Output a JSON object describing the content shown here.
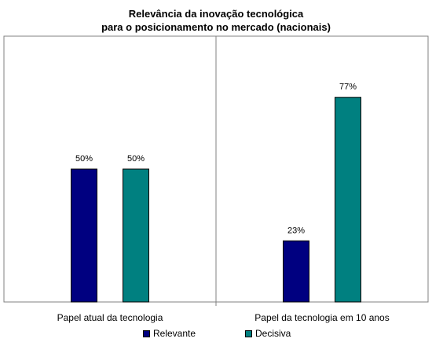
{
  "chart_data": {
    "type": "bar",
    "title": "Relevância da inovação tecnológica",
    "subtitle": "para o posicionamento no mercado (nacionais)",
    "categories": [
      "Papel atual da tecnologia",
      "Papel da tecnologia em 10 anos"
    ],
    "series": [
      {
        "name": "Relevante",
        "values": [
          50,
          23
        ],
        "labels": [
          "50%",
          "23%"
        ],
        "color": "#000080"
      },
      {
        "name": "Decisiva",
        "values": [
          50,
          77
        ],
        "labels": [
          "50%",
          "77%"
        ],
        "color": "#008080"
      }
    ],
    "ylim": [
      0,
      100
    ],
    "grid": false,
    "legend": "bottom"
  }
}
